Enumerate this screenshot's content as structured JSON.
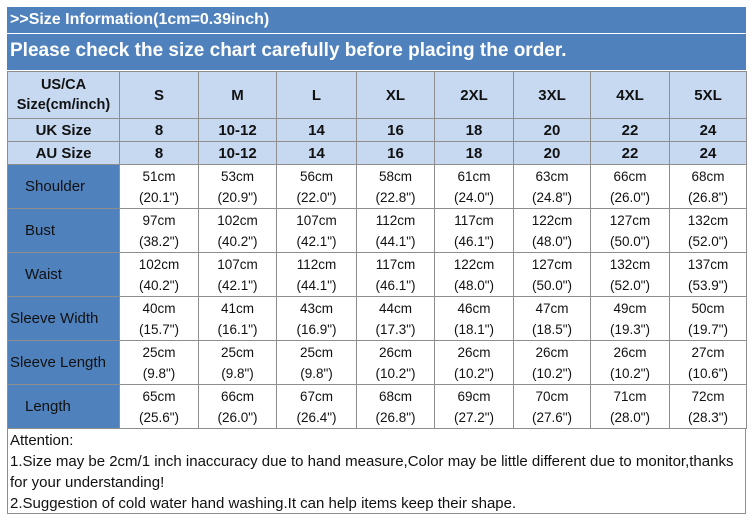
{
  "banner": {
    "title": ">>Size Information(1cm=0.39inch)",
    "notice": "Please check the size chart carefully before placing the order."
  },
  "table": {
    "corner_label_line1": "US/CA",
    "corner_label_line2": "Size(cm/inch)",
    "sizes": [
      "S",
      "M",
      "L",
      "XL",
      "2XL",
      "3XL",
      "4XL",
      "5XL"
    ],
    "size_rows": [
      {
        "label": "UK Size",
        "values": [
          "8",
          "10-12",
          "14",
          "16",
          "18",
          "20",
          "22",
          "24"
        ]
      },
      {
        "label": "AU Size",
        "values": [
          "8",
          "10-12",
          "14",
          "16",
          "18",
          "20",
          "22",
          "24"
        ]
      }
    ],
    "measurements": [
      {
        "label": "Shoulder",
        "cm": [
          "51cm",
          "53cm",
          "56cm",
          "58cm",
          "61cm",
          "63cm",
          "66cm",
          "68cm"
        ],
        "inch": [
          "(20.1\")",
          "(20.9\")",
          "(22.0\")",
          "(22.8\")",
          "(24.0\")",
          "(24.8\")",
          "(26.0\")",
          "(26.8\")"
        ]
      },
      {
        "label": "Bust",
        "cm": [
          "97cm",
          "102cm",
          "107cm",
          "112cm",
          "117cm",
          "122cm",
          "127cm",
          "132cm"
        ],
        "inch": [
          "(38.2\")",
          "(40.2\")",
          "(42.1\")",
          "(44.1\")",
          "(46.1\")",
          "(48.0\")",
          "(50.0\")",
          "(52.0\")"
        ]
      },
      {
        "label": "Waist",
        "cm": [
          "102cm",
          "107cm",
          "112cm",
          "117cm",
          "122cm",
          "127cm",
          "132cm",
          "137cm"
        ],
        "inch": [
          "(40.2\")",
          "(42.1\")",
          "(44.1\")",
          "(46.1\")",
          "(48.0\")",
          "(50.0\")",
          "(52.0\")",
          "(53.9\")"
        ]
      },
      {
        "label": "Sleeve Width",
        "cm": [
          "40cm",
          "41cm",
          "43cm",
          "44cm",
          "46cm",
          "47cm",
          "49cm",
          "50cm"
        ],
        "inch": [
          "(15.7\")",
          "(16.1\")",
          "(16.9\")",
          "(17.3\")",
          "(18.1\")",
          "(18.5\")",
          "(19.3\")",
          "(19.7\")"
        ]
      },
      {
        "label": "Sleeve Length",
        "cm": [
          "25cm",
          "25cm",
          "25cm",
          "26cm",
          "26cm",
          "26cm",
          "26cm",
          "27cm"
        ],
        "inch": [
          "(9.8\")",
          "(9.8\")",
          "(9.8\")",
          "(10.2\")",
          "(10.2\")",
          "(10.2\")",
          "(10.2\")",
          "(10.6\")"
        ]
      },
      {
        "label": "Length",
        "cm": [
          "65cm",
          "66cm",
          "67cm",
          "68cm",
          "69cm",
          "70cm",
          "71cm",
          "72cm"
        ],
        "inch": [
          "(25.6\")",
          "(26.0\")",
          "(26.4\")",
          "(26.8\")",
          "(27.2\")",
          "(27.6\")",
          "(28.0\")",
          "(28.3\")"
        ]
      }
    ]
  },
  "attention": {
    "heading": "Attention:",
    "note1": "1.Size may be 2cm/1 inch inaccuracy due to hand measure,Color may be little different due to monitor,thanks for your understanding!",
    "note2": "2.Suggestion of cold water hand washing.It can help items keep their shape."
  },
  "colors": {
    "banner_blue": "#4f81bd",
    "header_light_blue": "#c6d9f1",
    "border_gray": "#8e8e8e"
  }
}
